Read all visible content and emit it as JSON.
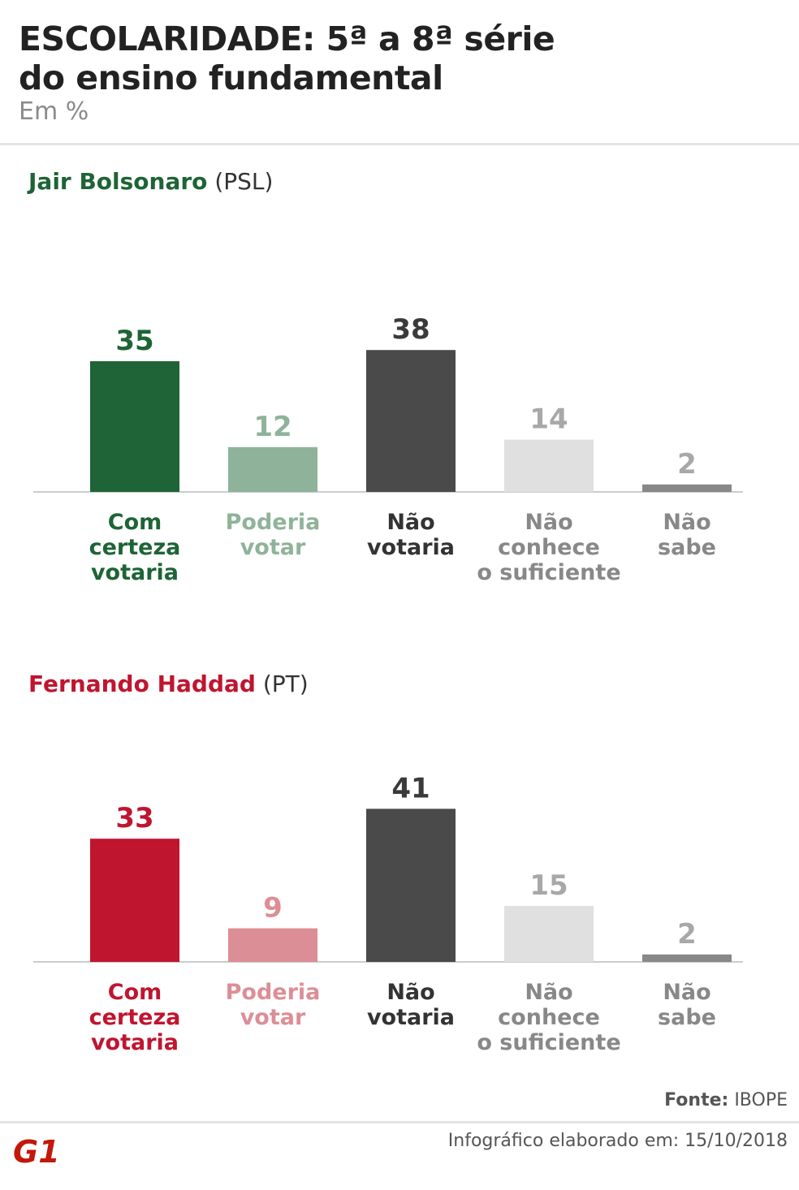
{
  "header": {
    "title_line1": "ESCOLARIDADE: 5ª a 8ª série",
    "title_line2": "do ensino fundamental",
    "subtitle": "Em %"
  },
  "categories": [
    [
      "Com",
      "certeza",
      "votaria"
    ],
    [
      "Poderia",
      "votar"
    ],
    [
      "Não",
      "votaria"
    ],
    [
      "Não",
      "conhece",
      "o suficiente"
    ],
    [
      "Não",
      "sabe"
    ]
  ],
  "chart_data": [
    {
      "type": "bar",
      "title": "Jair Bolsonaro (PSL)",
      "candidate_name": "Jair Bolsonaro",
      "party": "(PSL)",
      "name_color": "#1e6436",
      "categories": [
        "Com certeza votaria",
        "Poderia votar",
        "Não votaria",
        "Não conhece o suficiente",
        "Não sabe"
      ],
      "values": [
        35,
        12,
        38,
        14,
        2
      ],
      "bar_colors": [
        "#1e6436",
        "#8fb39a",
        "#4a4a4a",
        "#e0e0e0",
        "#888888"
      ],
      "value_colors": [
        "#1e6436",
        "#8fb39a",
        "#3a3a3a",
        "#a8a8a8",
        "#a8a8a8"
      ],
      "label_colors": [
        "#1e6436",
        "#8fb39a",
        "#333333",
        "#888888",
        "#888888"
      ]
    },
    {
      "type": "bar",
      "title": "Fernando Haddad (PT)",
      "candidate_name": "Fernando Haddad",
      "party": "(PT)",
      "name_color": "#c0152f",
      "categories": [
        "Com certeza votaria",
        "Poderia votar",
        "Não votaria",
        "Não conhece o suficiente",
        "Não sabe"
      ],
      "values": [
        33,
        9,
        41,
        15,
        2
      ],
      "bar_colors": [
        "#c0152f",
        "#dc8e96",
        "#4a4a4a",
        "#e0e0e0",
        "#888888"
      ],
      "value_colors": [
        "#c0152f",
        "#dc8e96",
        "#3a3a3a",
        "#a8a8a8",
        "#a8a8a8"
      ],
      "label_colors": [
        "#c0152f",
        "#dc8e96",
        "#333333",
        "#888888",
        "#888888"
      ]
    }
  ],
  "footer": {
    "source_label": "Fonte:",
    "source_value": "IBOPE",
    "note": "Infográfico elaborado em: 15/10/2018",
    "logo_text": "G1",
    "logo_color": "#c4170c"
  }
}
